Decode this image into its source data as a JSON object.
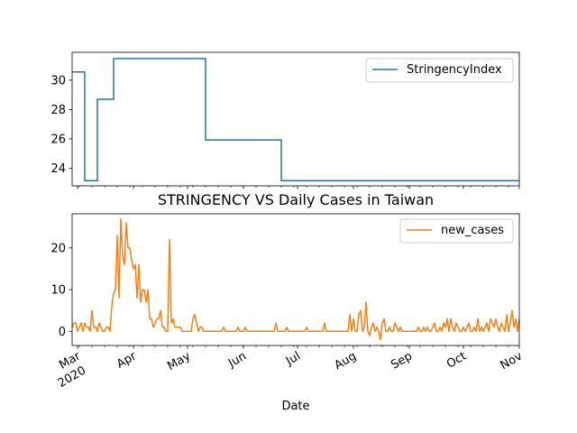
{
  "chart_data": [
    {
      "type": "line",
      "title": "",
      "xlabel": "",
      "ylabel": "",
      "ylim": [
        22.8,
        31.9
      ],
      "xlim": [
        "2020-02-27",
        "2020-11-01"
      ],
      "grid": false,
      "legend_position": "top-right",
      "yticks": [
        "24",
        "26",
        "28",
        "30"
      ],
      "series": [
        {
          "name": "StringencyIndex",
          "color": "#1f77b4",
          "step": true,
          "points": [
            {
              "x": "2020-02-27",
              "y": 30.56
            },
            {
              "x": "2020-03-04",
              "y": 30.56
            },
            {
              "x": "2020-03-05",
              "y": 23.15
            },
            {
              "x": "2020-03-11",
              "y": 23.15
            },
            {
              "x": "2020-03-12",
              "y": 28.7
            },
            {
              "x": "2020-03-20",
              "y": 28.7
            },
            {
              "x": "2020-03-21",
              "y": 31.48
            },
            {
              "x": "2020-05-10",
              "y": 31.48
            },
            {
              "x": "2020-05-11",
              "y": 25.93
            },
            {
              "x": "2020-06-21",
              "y": 25.93
            },
            {
              "x": "2020-06-22",
              "y": 23.15
            },
            {
              "x": "2020-11-01",
              "y": 23.15
            }
          ]
        }
      ]
    },
    {
      "type": "line",
      "title": "STRINGENCY VS Daily Cases in Taiwan",
      "xlabel": "Date",
      "ylabel": "",
      "ylim": [
        -3.4,
        28.2
      ],
      "xlim": [
        "2020-02-27",
        "2020-11-01"
      ],
      "grid": false,
      "legend_position": "top-right",
      "yticks": [
        "0",
        "10",
        "20"
      ],
      "xticks": [
        {
          "date": "2020-03-01",
          "label": "Mar",
          "sub": "2020"
        },
        {
          "date": "2020-04-01",
          "label": "Apr",
          "sub": ""
        },
        {
          "date": "2020-05-01",
          "label": "May",
          "sub": ""
        },
        {
          "date": "2020-06-01",
          "label": "Jun",
          "sub": ""
        },
        {
          "date": "2020-07-01",
          "label": "Jul",
          "sub": ""
        },
        {
          "date": "2020-08-01",
          "label": "Aug",
          "sub": ""
        },
        {
          "date": "2020-09-01",
          "label": "Sep",
          "sub": ""
        },
        {
          "date": "2020-10-01",
          "label": "Oct",
          "sub": ""
        },
        {
          "date": "2020-11-01",
          "label": "Nov",
          "sub": ""
        }
      ],
      "series": [
        {
          "name": "new_cases",
          "color": "#ff7f0e",
          "points": [
            {
              "x": "2020-02-27",
              "y": 1
            },
            {
              "x": "2020-02-28",
              "y": 2
            },
            {
              "x": "2020-02-29",
              "y": 2
            },
            {
              "x": "2020-03-01",
              "y": 0
            },
            {
              "x": "2020-03-02",
              "y": 1
            },
            {
              "x": "2020-03-03",
              "y": 2
            },
            {
              "x": "2020-03-04",
              "y": 0
            },
            {
              "x": "2020-03-05",
              "y": 2
            },
            {
              "x": "2020-03-06",
              "y": 1
            },
            {
              "x": "2020-03-07",
              "y": 1
            },
            {
              "x": "2020-03-08",
              "y": 0
            },
            {
              "x": "2020-03-09",
              "y": 5
            },
            {
              "x": "2020-03-10",
              "y": 1
            },
            {
              "x": "2020-03-11",
              "y": 1
            },
            {
              "x": "2020-03-12",
              "y": 0
            },
            {
              "x": "2020-03-13",
              "y": 2
            },
            {
              "x": "2020-03-14",
              "y": 1
            },
            {
              "x": "2020-03-15",
              "y": 0
            },
            {
              "x": "2020-03-16",
              "y": 0
            },
            {
              "x": "2020-03-17",
              "y": 1
            },
            {
              "x": "2020-03-18",
              "y": 1
            },
            {
              "x": "2020-03-19",
              "y": 0
            },
            {
              "x": "2020-03-20",
              "y": 6
            },
            {
              "x": "2020-03-21",
              "y": 9
            },
            {
              "x": "2020-03-22",
              "y": 10
            },
            {
              "x": "2020-03-23",
              "y": 23
            },
            {
              "x": "2020-03-24",
              "y": 8
            },
            {
              "x": "2020-03-25",
              "y": 27
            },
            {
              "x": "2020-03-26",
              "y": 18
            },
            {
              "x": "2020-03-27",
              "y": 16
            },
            {
              "x": "2020-03-28",
              "y": 26
            },
            {
              "x": "2020-03-29",
              "y": 20
            },
            {
              "x": "2020-03-30",
              "y": 20
            },
            {
              "x": "2020-03-31",
              "y": 17
            },
            {
              "x": "2020-04-01",
              "y": 15
            },
            {
              "x": "2020-04-02",
              "y": 16
            },
            {
              "x": "2020-04-03",
              "y": 8
            },
            {
              "x": "2020-04-04",
              "y": 16
            },
            {
              "x": "2020-04-05",
              "y": 7
            },
            {
              "x": "2020-04-06",
              "y": 10
            },
            {
              "x": "2020-04-07",
              "y": 10
            },
            {
              "x": "2020-04-08",
              "y": 7
            },
            {
              "x": "2020-04-09",
              "y": 10
            },
            {
              "x": "2020-04-10",
              "y": 3
            },
            {
              "x": "2020-04-11",
              "y": 3
            },
            {
              "x": "2020-04-12",
              "y": 1
            },
            {
              "x": "2020-04-13",
              "y": 2
            },
            {
              "x": "2020-04-14",
              "y": 3
            },
            {
              "x": "2020-04-15",
              "y": 3
            },
            {
              "x": "2020-04-16",
              "y": 5
            },
            {
              "x": "2020-04-17",
              "y": 1
            },
            {
              "x": "2020-04-18",
              "y": 1
            },
            {
              "x": "2020-04-19",
              "y": 0
            },
            {
              "x": "2020-04-20",
              "y": 0
            },
            {
              "x": "2020-04-21",
              "y": 22
            },
            {
              "x": "2020-04-22",
              "y": 2
            },
            {
              "x": "2020-04-23",
              "y": 3
            },
            {
              "x": "2020-04-24",
              "y": 1
            },
            {
              "x": "2020-04-25",
              "y": 1
            },
            {
              "x": "2020-04-26",
              "y": 1
            },
            {
              "x": "2020-04-27",
              "y": 1
            },
            {
              "x": "2020-04-28",
              "y": 0
            },
            {
              "x": "2020-04-29",
              "y": 0
            },
            {
              "x": "2020-04-30",
              "y": 0
            },
            {
              "x": "2020-05-01",
              "y": 0
            },
            {
              "x": "2020-05-02",
              "y": 0
            },
            {
              "x": "2020-05-03",
              "y": 0
            },
            {
              "x": "2020-05-04",
              "y": 3
            },
            {
              "x": "2020-05-05",
              "y": 4
            },
            {
              "x": "2020-05-06",
              "y": 2
            },
            {
              "x": "2020-05-07",
              "y": 0
            },
            {
              "x": "2020-05-08",
              "y": 1
            },
            {
              "x": "2020-05-09",
              "y": 1
            },
            {
              "x": "2020-05-10",
              "y": 0
            },
            {
              "x": "2020-05-20",
              "y": 0
            },
            {
              "x": "2020-05-21",
              "y": 1
            },
            {
              "x": "2020-05-22",
              "y": 0
            },
            {
              "x": "2020-05-28",
              "y": 0
            },
            {
              "x": "2020-05-29",
              "y": 1
            },
            {
              "x": "2020-05-30",
              "y": 0
            },
            {
              "x": "2020-06-01",
              "y": 0
            },
            {
              "x": "2020-06-02",
              "y": 1
            },
            {
              "x": "2020-06-03",
              "y": 0
            },
            {
              "x": "2020-06-18",
              "y": 0
            },
            {
              "x": "2020-06-19",
              "y": 2
            },
            {
              "x": "2020-06-20",
              "y": 0
            },
            {
              "x": "2020-06-24",
              "y": 0
            },
            {
              "x": "2020-06-25",
              "y": 1
            },
            {
              "x": "2020-06-26",
              "y": 0
            },
            {
              "x": "2020-07-05",
              "y": 0
            },
            {
              "x": "2020-07-06",
              "y": 1
            },
            {
              "x": "2020-07-07",
              "y": 0
            },
            {
              "x": "2020-07-15",
              "y": 0
            },
            {
              "x": "2020-07-16",
              "y": 2
            },
            {
              "x": "2020-07-17",
              "y": 0
            },
            {
              "x": "2020-07-29",
              "y": 0
            },
            {
              "x": "2020-07-30",
              "y": 4
            },
            {
              "x": "2020-07-31",
              "y": 0
            },
            {
              "x": "2020-08-01",
              "y": 3
            },
            {
              "x": "2020-08-02",
              "y": 0
            },
            {
              "x": "2020-08-03",
              "y": 0
            },
            {
              "x": "2020-08-04",
              "y": 4
            },
            {
              "x": "2020-08-05",
              "y": 5
            },
            {
              "x": "2020-08-06",
              "y": 0
            },
            {
              "x": "2020-08-07",
              "y": 1
            },
            {
              "x": "2020-08-08",
              "y": 7
            },
            {
              "x": "2020-08-09",
              "y": 0
            },
            {
              "x": "2020-08-10",
              "y": -1
            },
            {
              "x": "2020-08-11",
              "y": 1
            },
            {
              "x": "2020-08-12",
              "y": 2
            },
            {
              "x": "2020-08-13",
              "y": 0
            },
            {
              "x": "2020-08-14",
              "y": 1
            },
            {
              "x": "2020-08-15",
              "y": 0
            },
            {
              "x": "2020-08-16",
              "y": -2
            },
            {
              "x": "2020-08-17",
              "y": 2
            },
            {
              "x": "2020-08-18",
              "y": 3
            },
            {
              "x": "2020-08-19",
              "y": 0
            },
            {
              "x": "2020-08-20",
              "y": 0
            },
            {
              "x": "2020-08-21",
              "y": 1
            },
            {
              "x": "2020-08-22",
              "y": 0
            },
            {
              "x": "2020-08-23",
              "y": 0
            },
            {
              "x": "2020-08-24",
              "y": 2
            },
            {
              "x": "2020-08-25",
              "y": 1
            },
            {
              "x": "2020-08-26",
              "y": 0
            },
            {
              "x": "2020-08-27",
              "y": 1
            },
            {
              "x": "2020-08-28",
              "y": 0
            },
            {
              "x": "2020-09-05",
              "y": 0
            },
            {
              "x": "2020-09-06",
              "y": 1
            },
            {
              "x": "2020-09-07",
              "y": 0
            },
            {
              "x": "2020-09-08",
              "y": 0
            },
            {
              "x": "2020-09-09",
              "y": 1
            },
            {
              "x": "2020-09-10",
              "y": 0
            },
            {
              "x": "2020-09-11",
              "y": 1
            },
            {
              "x": "2020-09-12",
              "y": 0
            },
            {
              "x": "2020-09-13",
              "y": 0
            },
            {
              "x": "2020-09-14",
              "y": 1
            },
            {
              "x": "2020-09-15",
              "y": 2
            },
            {
              "x": "2020-09-16",
              "y": 0
            },
            {
              "x": "2020-09-17",
              "y": 0
            },
            {
              "x": "2020-09-18",
              "y": 1
            },
            {
              "x": "2020-09-19",
              "y": 0
            },
            {
              "x": "2020-09-20",
              "y": 2
            },
            {
              "x": "2020-09-21",
              "y": 1
            },
            {
              "x": "2020-09-22",
              "y": 3
            },
            {
              "x": "2020-09-23",
              "y": 0
            },
            {
              "x": "2020-09-24",
              "y": 3
            },
            {
              "x": "2020-09-25",
              "y": 1
            },
            {
              "x": "2020-09-26",
              "y": 0
            },
            {
              "x": "2020-09-27",
              "y": 2
            },
            {
              "x": "2020-09-28",
              "y": 1
            },
            {
              "x": "2020-09-29",
              "y": 0
            },
            {
              "x": "2020-09-30",
              "y": 0
            },
            {
              "x": "2020-10-01",
              "y": 1
            },
            {
              "x": "2020-10-02",
              "y": 0
            },
            {
              "x": "2020-10-03",
              "y": 1
            },
            {
              "x": "2020-10-04",
              "y": 2
            },
            {
              "x": "2020-10-05",
              "y": 0
            },
            {
              "x": "2020-10-06",
              "y": 0
            },
            {
              "x": "2020-10-07",
              "y": 1
            },
            {
              "x": "2020-10-08",
              "y": 0
            },
            {
              "x": "2020-10-09",
              "y": 3
            },
            {
              "x": "2020-10-10",
              "y": 0
            },
            {
              "x": "2020-10-11",
              "y": 1
            },
            {
              "x": "2020-10-12",
              "y": 0
            },
            {
              "x": "2020-10-13",
              "y": 1
            },
            {
              "x": "2020-10-14",
              "y": 2
            },
            {
              "x": "2020-10-15",
              "y": 0
            },
            {
              "x": "2020-10-16",
              "y": 3
            },
            {
              "x": "2020-10-17",
              "y": 2
            },
            {
              "x": "2020-10-18",
              "y": 1
            },
            {
              "x": "2020-10-19",
              "y": 3
            },
            {
              "x": "2020-10-20",
              "y": 1
            },
            {
              "x": "2020-10-21",
              "y": 0
            },
            {
              "x": "2020-10-22",
              "y": 2
            },
            {
              "x": "2020-10-23",
              "y": 1
            },
            {
              "x": "2020-10-24",
              "y": 0
            },
            {
              "x": "2020-10-25",
              "y": 4
            },
            {
              "x": "2020-10-26",
              "y": 0
            },
            {
              "x": "2020-10-27",
              "y": 2
            },
            {
              "x": "2020-10-28",
              "y": 5
            },
            {
              "x": "2020-10-29",
              "y": 1
            },
            {
              "x": "2020-10-30",
              "y": 3
            },
            {
              "x": "2020-10-31",
              "y": 0
            },
            {
              "x": "2020-11-01",
              "y": 3
            }
          ]
        }
      ]
    }
  ]
}
